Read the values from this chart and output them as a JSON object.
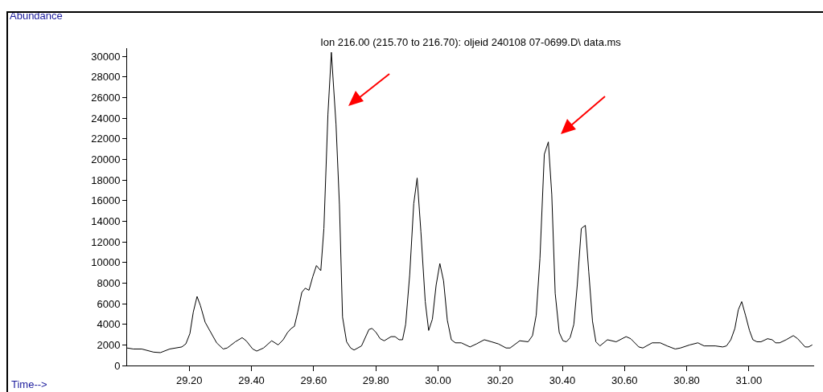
{
  "chart_data": {
    "type": "line",
    "title": "Ion 216.00 (215.70 to 216.70): oljeid 240108 07-0699.D\\ data.ms",
    "xlabel": "Time-->",
    "ylabel": "Abundance",
    "xlim": [
      29.0,
      31.21
    ],
    "xticks": [
      {
        "value": 29.2,
        "label": "29.20"
      },
      {
        "value": 29.4,
        "label": "29.40"
      },
      {
        "value": 29.6,
        "label": "29.60"
      },
      {
        "value": 29.8,
        "label": "29.80"
      },
      {
        "value": 30.0,
        "label": "30.00"
      },
      {
        "value": 30.2,
        "label": "30.20"
      },
      {
        "value": 30.4,
        "label": "30.40"
      },
      {
        "value": 30.6,
        "label": "30.60"
      },
      {
        "value": 30.8,
        "label": "30.80"
      },
      {
        "value": 31.0,
        "label": "31.00"
      }
    ],
    "ylim": [
      0,
      30800
    ],
    "yticks": [
      0,
      2000,
      4000,
      6000,
      8000,
      10000,
      12000,
      14000,
      16000,
      18000,
      20000,
      22000,
      24000,
      26000,
      28000,
      30000
    ],
    "grid": false,
    "marker": "none",
    "line_style": "solid",
    "series": [
      {
        "color": "#000000",
        "x": [
          29.0,
          29.02,
          29.047,
          29.085,
          29.107,
          29.137,
          29.176,
          29.189,
          29.202,
          29.213,
          29.225,
          29.236,
          29.251,
          29.262,
          29.288,
          29.309,
          29.322,
          29.348,
          29.37,
          29.383,
          29.404,
          29.417,
          29.439,
          29.465,
          29.486,
          29.502,
          29.516,
          29.528,
          29.538,
          29.549,
          29.562,
          29.573,
          29.585,
          29.597,
          29.609,
          29.623,
          29.633,
          29.646,
          29.657,
          29.672,
          29.683,
          29.693,
          29.706,
          29.719,
          29.73,
          29.754,
          29.778,
          29.788,
          29.801,
          29.814,
          29.827,
          29.849,
          29.862,
          29.875,
          29.886,
          29.896,
          29.909,
          29.922,
          29.933,
          29.945,
          29.959,
          29.97,
          29.982,
          29.994,
          30.006,
          30.018,
          30.03,
          30.043,
          30.056,
          30.075,
          30.103,
          30.124,
          30.149,
          30.172,
          30.194,
          30.219,
          30.232,
          30.263,
          30.29,
          30.304,
          30.316,
          30.328,
          30.342,
          30.355,
          30.366,
          30.377,
          30.39,
          30.402,
          30.413,
          30.425,
          30.437,
          30.448,
          30.461,
          30.474,
          30.485,
          30.497,
          30.508,
          30.521,
          30.545,
          30.573,
          30.605,
          30.62,
          30.646,
          30.659,
          30.689,
          30.715,
          30.737,
          30.763,
          30.78,
          30.81,
          30.836,
          30.856,
          30.892,
          30.916,
          30.928,
          30.942,
          30.955,
          30.966,
          30.977,
          30.989,
          31.002,
          31.013,
          31.026,
          31.039,
          31.06,
          31.075,
          31.086,
          31.099,
          31.12,
          31.143,
          31.157,
          31.181,
          31.192,
          31.204
        ],
        "values": [
          1700,
          1600,
          1600,
          1300,
          1250,
          1600,
          1800,
          2100,
          3100,
          5200,
          6700,
          5800,
          4200,
          3600,
          2200,
          1600,
          1700,
          2300,
          2700,
          2400,
          1600,
          1400,
          1700,
          2400,
          2000,
          2500,
          3200,
          3600,
          3800,
          5200,
          7100,
          7500,
          7300,
          8600,
          9700,
          9200,
          13300,
          24400,
          30400,
          23400,
          15600,
          4700,
          2300,
          1700,
          1500,
          1900,
          3500,
          3600,
          3200,
          2600,
          2400,
          2800,
          2800,
          2500,
          2500,
          4000,
          8800,
          15700,
          18200,
          13000,
          6200,
          3400,
          4500,
          7800,
          9900,
          8200,
          4400,
          2500,
          2200,
          2200,
          1800,
          2100,
          2500,
          2300,
          2100,
          1700,
          1700,
          2400,
          2300,
          2900,
          4900,
          10400,
          20500,
          21700,
          16600,
          7000,
          3200,
          2400,
          2300,
          2700,
          4000,
          7800,
          13300,
          13600,
          9100,
          4300,
          2300,
          1900,
          2500,
          2300,
          2800,
          2600,
          1800,
          1700,
          2200,
          2200,
          1900,
          1600,
          1700,
          2000,
          2200,
          1900,
          1900,
          1800,
          1900,
          2500,
          3600,
          5400,
          6200,
          4900,
          3400,
          2500,
          2300,
          2300,
          2600,
          2500,
          2200,
          2200,
          2500,
          2900,
          2600,
          1800,
          1800,
          2000
        ]
      }
    ]
  }
}
